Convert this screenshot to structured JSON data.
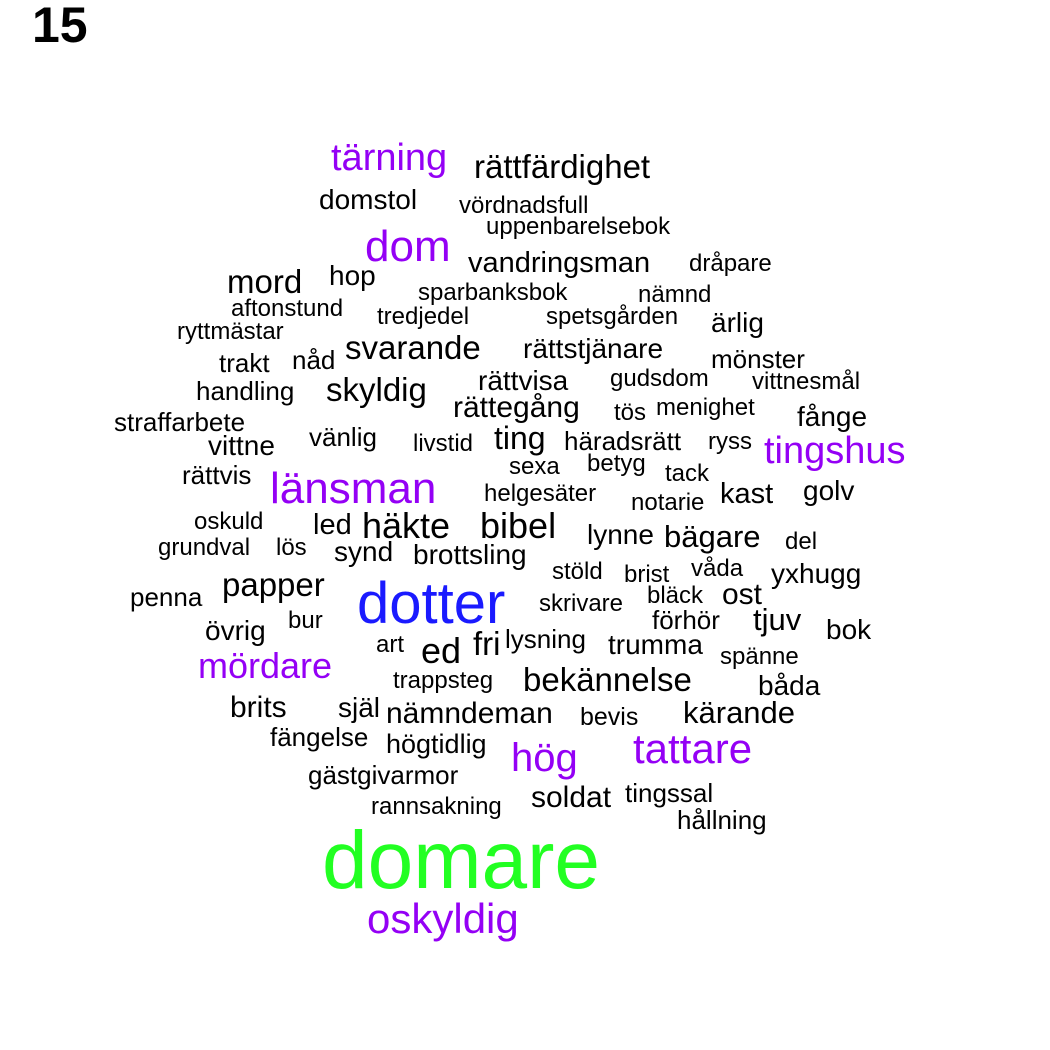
{
  "page_number": "15",
  "colors": {
    "top": "#22ff22",
    "large": "#1a1aff",
    "medium": "#9400f5",
    "default": "#000000"
  },
  "words": [
    {
      "text": "domare",
      "tier": "top"
    },
    {
      "text": "dotter",
      "tier": "large"
    },
    {
      "text": "länsman",
      "tier": "medium"
    },
    {
      "text": "oskyldig",
      "tier": "medium"
    },
    {
      "text": "tattare",
      "tier": "medium"
    },
    {
      "text": "dom",
      "tier": "medium"
    },
    {
      "text": "tärning",
      "tier": "medium"
    },
    {
      "text": "tingshus",
      "tier": "medium"
    },
    {
      "text": "mördare",
      "tier": "medium"
    },
    {
      "text": "hög",
      "tier": "medium"
    },
    {
      "text": "rättfärdighet",
      "tier": "default"
    },
    {
      "text": "domstol",
      "tier": "default"
    },
    {
      "text": "vördnadsfull",
      "tier": "default"
    },
    {
      "text": "uppenbarelsebok",
      "tier": "default"
    },
    {
      "text": "vandringsman",
      "tier": "default"
    },
    {
      "text": "dråpare",
      "tier": "default"
    },
    {
      "text": "mord",
      "tier": "default"
    },
    {
      "text": "hop",
      "tier": "default"
    },
    {
      "text": "sparbanksbok",
      "tier": "default"
    },
    {
      "text": "nämnd",
      "tier": "default"
    },
    {
      "text": "aftonstund",
      "tier": "default"
    },
    {
      "text": "tredjedel",
      "tier": "default"
    },
    {
      "text": "spetsgården",
      "tier": "default"
    },
    {
      "text": "ärlig",
      "tier": "default"
    },
    {
      "text": "ryttmästar",
      "tier": "default"
    },
    {
      "text": "svarande",
      "tier": "default"
    },
    {
      "text": "rättstjänare",
      "tier": "default"
    },
    {
      "text": "trakt",
      "tier": "default"
    },
    {
      "text": "nåd",
      "tier": "default"
    },
    {
      "text": "mönster",
      "tier": "default"
    },
    {
      "text": "handling",
      "tier": "default"
    },
    {
      "text": "skyldig",
      "tier": "default"
    },
    {
      "text": "rättvisa",
      "tier": "default"
    },
    {
      "text": "gudsdom",
      "tier": "default"
    },
    {
      "text": "vittnesmål",
      "tier": "default"
    },
    {
      "text": "rättegång",
      "tier": "default"
    },
    {
      "text": "tös",
      "tier": "default"
    },
    {
      "text": "menighet",
      "tier": "default"
    },
    {
      "text": "fånge",
      "tier": "default"
    },
    {
      "text": "straffarbete",
      "tier": "default"
    },
    {
      "text": "vänlig",
      "tier": "default"
    },
    {
      "text": "ting",
      "tier": "default"
    },
    {
      "text": "häradsrätt",
      "tier": "default"
    },
    {
      "text": "ryss",
      "tier": "default"
    },
    {
      "text": "vittne",
      "tier": "default"
    },
    {
      "text": "livstid",
      "tier": "default"
    },
    {
      "text": "sexa",
      "tier": "default"
    },
    {
      "text": "betyg",
      "tier": "default"
    },
    {
      "text": "tack",
      "tier": "default"
    },
    {
      "text": "rättvis",
      "tier": "default"
    },
    {
      "text": "helgesäter",
      "tier": "default"
    },
    {
      "text": "notarie",
      "tier": "default"
    },
    {
      "text": "kast",
      "tier": "default"
    },
    {
      "text": "golv",
      "tier": "default"
    },
    {
      "text": "oskuld",
      "tier": "default"
    },
    {
      "text": "led",
      "tier": "default"
    },
    {
      "text": "häkte",
      "tier": "default"
    },
    {
      "text": "bibel",
      "tier": "default"
    },
    {
      "text": "lynne",
      "tier": "default"
    },
    {
      "text": "bägare",
      "tier": "default"
    },
    {
      "text": "del",
      "tier": "default"
    },
    {
      "text": "grundval",
      "tier": "default"
    },
    {
      "text": "lös",
      "tier": "default"
    },
    {
      "text": "synd",
      "tier": "default"
    },
    {
      "text": "brottsling",
      "tier": "default"
    },
    {
      "text": "stöld",
      "tier": "default"
    },
    {
      "text": "brist",
      "tier": "default"
    },
    {
      "text": "våda",
      "tier": "default"
    },
    {
      "text": "yxhugg",
      "tier": "default"
    },
    {
      "text": "penna",
      "tier": "default"
    },
    {
      "text": "papper",
      "tier": "default"
    },
    {
      "text": "skrivare",
      "tier": "default"
    },
    {
      "text": "bläck",
      "tier": "default"
    },
    {
      "text": "ost",
      "tier": "default"
    },
    {
      "text": "bur",
      "tier": "default"
    },
    {
      "text": "förhör",
      "tier": "default"
    },
    {
      "text": "tjuv",
      "tier": "default"
    },
    {
      "text": "bok",
      "tier": "default"
    },
    {
      "text": "övrig",
      "tier": "default"
    },
    {
      "text": "art",
      "tier": "default"
    },
    {
      "text": "ed",
      "tier": "default"
    },
    {
      "text": "fri",
      "tier": "default"
    },
    {
      "text": "lysning",
      "tier": "default"
    },
    {
      "text": "trumma",
      "tier": "default"
    },
    {
      "text": "spänne",
      "tier": "default"
    },
    {
      "text": "trappsteg",
      "tier": "default"
    },
    {
      "text": "bekännelse",
      "tier": "default"
    },
    {
      "text": "båda",
      "tier": "default"
    },
    {
      "text": "brits",
      "tier": "default"
    },
    {
      "text": "själ",
      "tier": "default"
    },
    {
      "text": "nämndeman",
      "tier": "default"
    },
    {
      "text": "bevis",
      "tier": "default"
    },
    {
      "text": "kärande",
      "tier": "default"
    },
    {
      "text": "fängelse",
      "tier": "default"
    },
    {
      "text": "högtidlig",
      "tier": "default"
    },
    {
      "text": "gästgivarmor",
      "tier": "default"
    },
    {
      "text": "soldat",
      "tier": "default"
    },
    {
      "text": "tingssal",
      "tier": "default"
    },
    {
      "text": "rannsakning",
      "tier": "default"
    },
    {
      "text": "hållning",
      "tier": "default"
    }
  ]
}
